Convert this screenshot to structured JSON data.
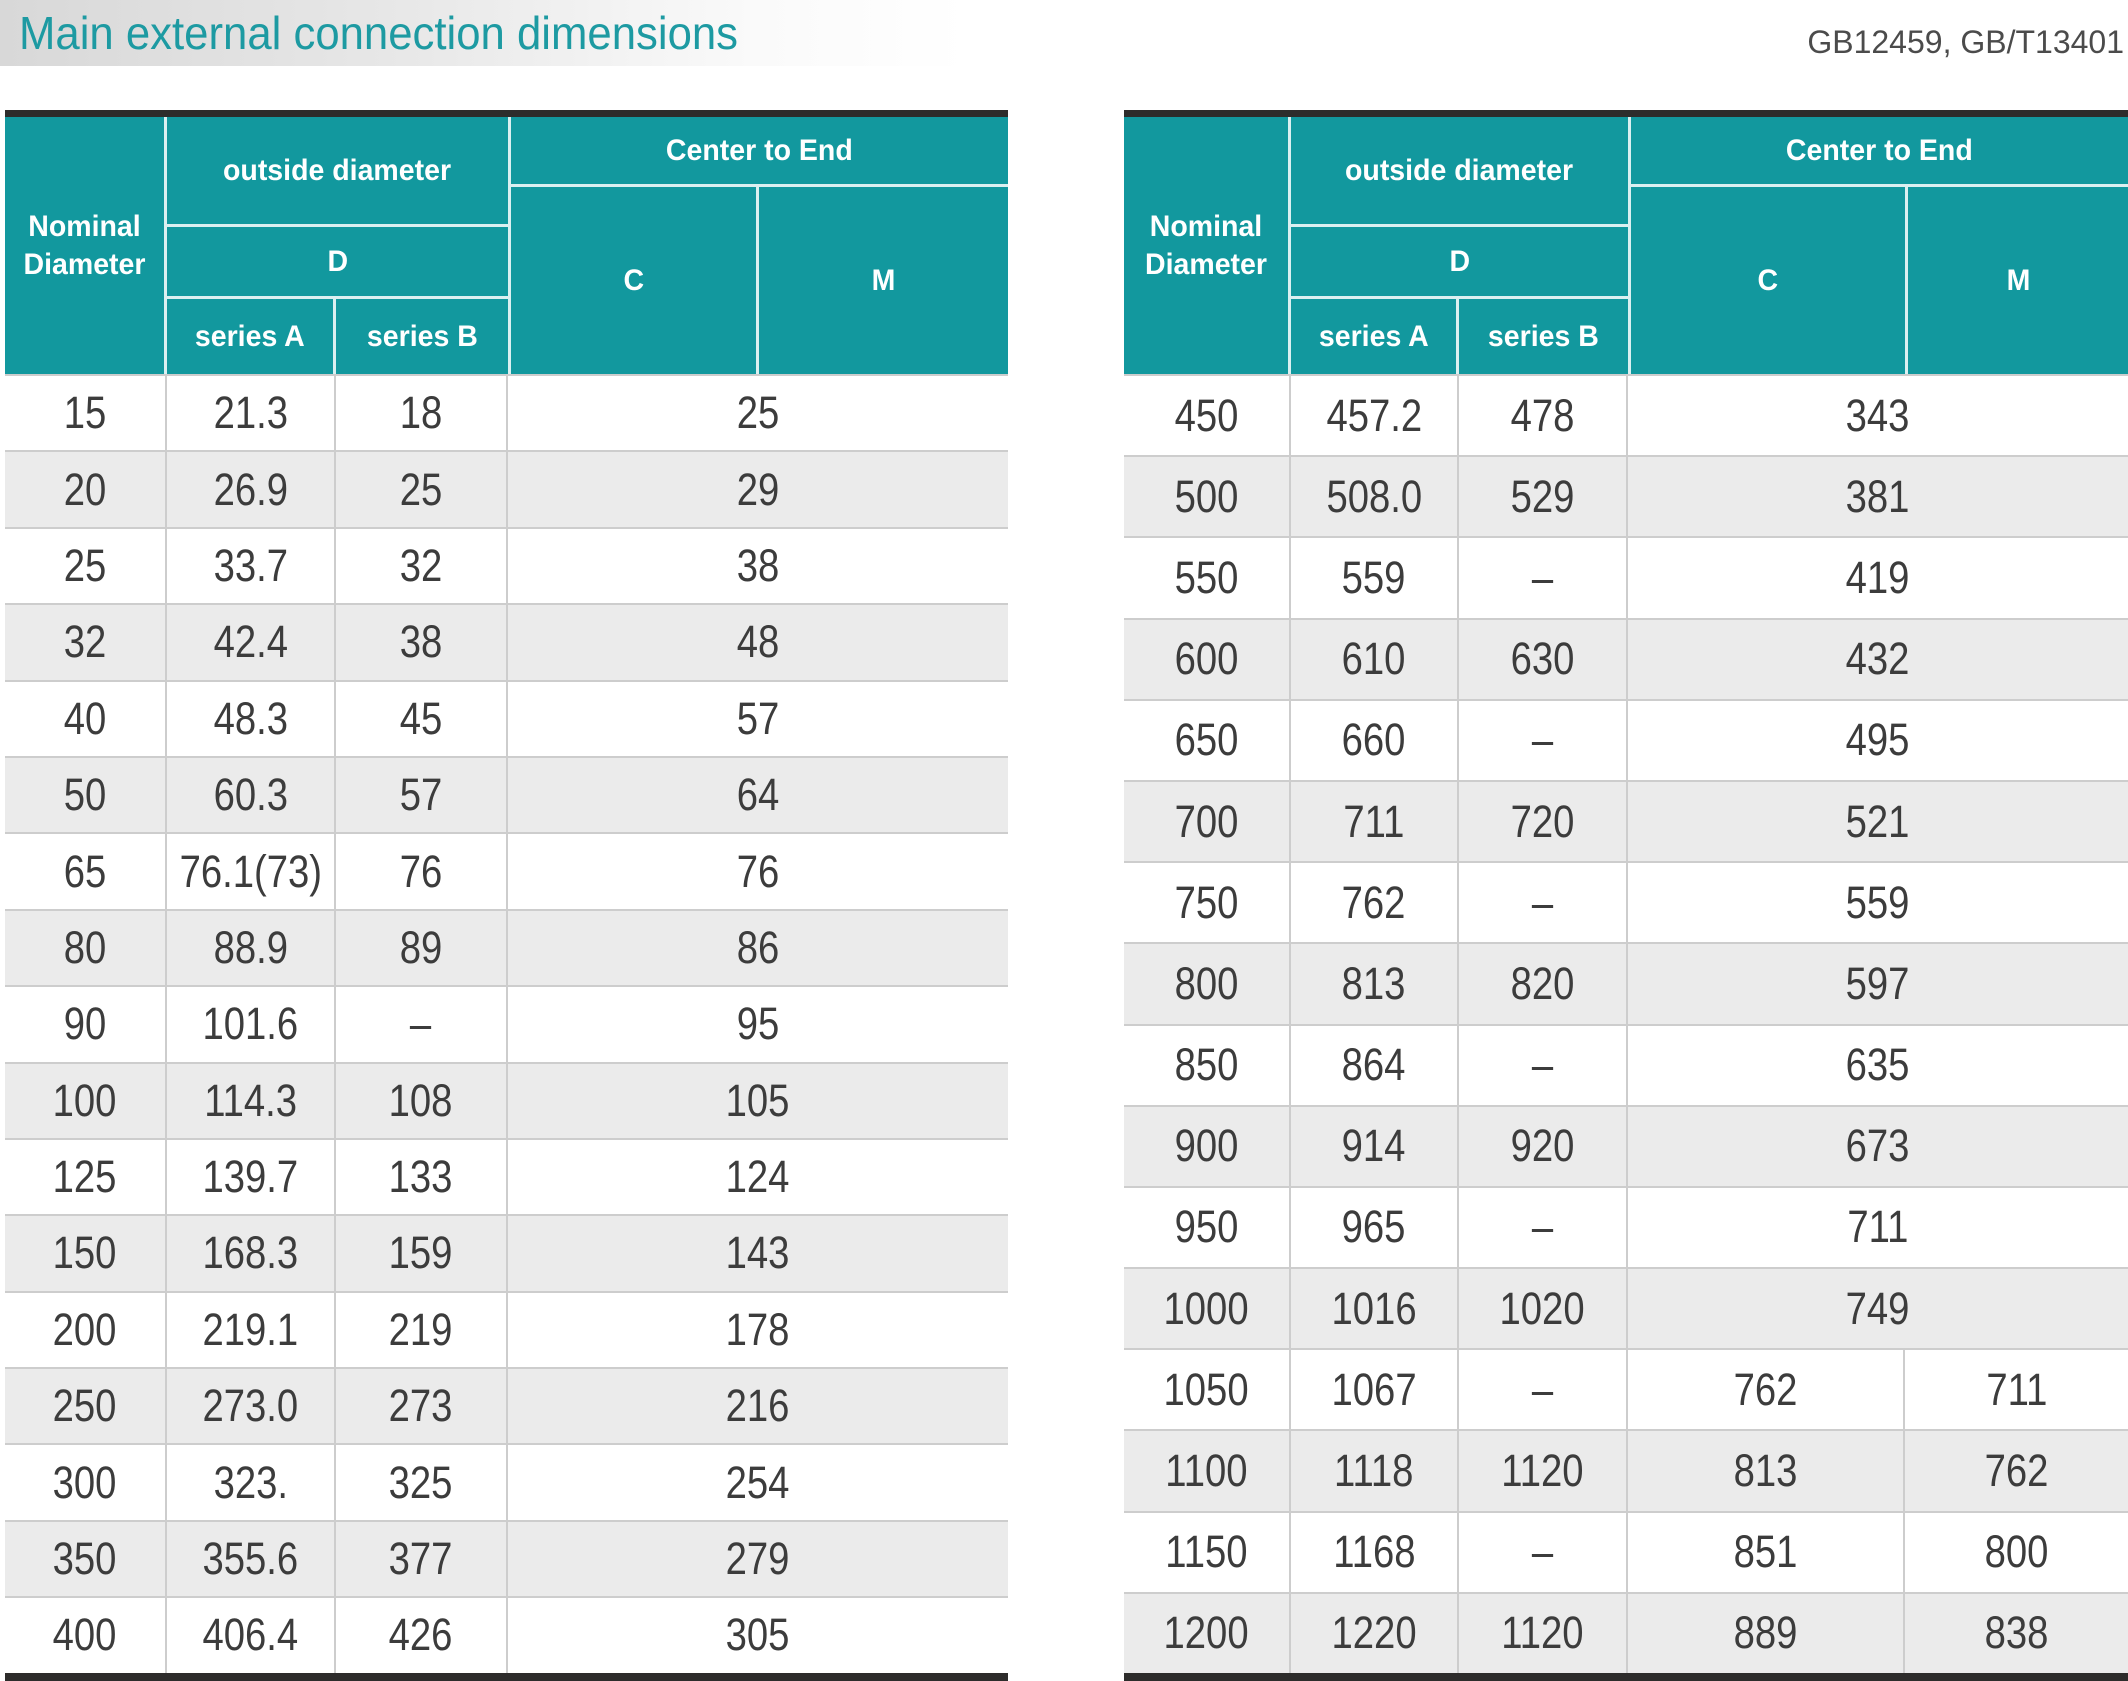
{
  "page": {
    "title": "Main external connection dimensions",
    "standards": "GB12459, GB/T13401"
  },
  "colors": {
    "accent_teal": "#12989E",
    "header_text": "#FFFFFF",
    "row_stripe": "#EBEBEB",
    "body_text": "#3C3C3C",
    "grid_line": "#CDCDCD",
    "table_frame": "#2D2C2B",
    "title_text": "#1D9AA2",
    "standards_text": "#4B4B4B",
    "titlebar_gradient_start": "#D8D8D8"
  },
  "table_header": {
    "nominal_diameter": "Nominal Diameter",
    "outside_diameter": "outside diameter",
    "d": "D",
    "series_a": "series A",
    "series_b": "series B",
    "center_to_end": "Center to End",
    "c": "C",
    "m": "M"
  },
  "left_table": {
    "rows": [
      {
        "dn": "15",
        "series_a": "21.3",
        "series_b": "18",
        "cm": "25"
      },
      {
        "dn": "20",
        "series_a": "26.9",
        "series_b": "25",
        "cm": "29"
      },
      {
        "dn": "25",
        "series_a": "33.7",
        "series_b": "32",
        "cm": "38"
      },
      {
        "dn": "32",
        "series_a": "42.4",
        "series_b": "38",
        "cm": "48"
      },
      {
        "dn": "40",
        "series_a": "48.3",
        "series_b": "45",
        "cm": "57"
      },
      {
        "dn": "50",
        "series_a": "60.3",
        "series_b": "57",
        "cm": "64"
      },
      {
        "dn": "65",
        "series_a": "76.1(73)",
        "series_b": "76",
        "cm": "76"
      },
      {
        "dn": "80",
        "series_a": "88.9",
        "series_b": "89",
        "cm": "86"
      },
      {
        "dn": "90",
        "series_a": "101.6",
        "series_b": "–",
        "cm": "95"
      },
      {
        "dn": "100",
        "series_a": "114.3",
        "series_b": "108",
        "cm": "105"
      },
      {
        "dn": "125",
        "series_a": "139.7",
        "series_b": "133",
        "cm": "124"
      },
      {
        "dn": "150",
        "series_a": "168.3",
        "series_b": "159",
        "cm": "143"
      },
      {
        "dn": "200",
        "series_a": "219.1",
        "series_b": "219",
        "cm": "178"
      },
      {
        "dn": "250",
        "series_a": "273.0",
        "series_b": "273",
        "cm": "216"
      },
      {
        "dn": "300",
        "series_a": "323.",
        "series_b": "325",
        "cm": "254"
      },
      {
        "dn": "350",
        "series_a": "355.6",
        "series_b": "377",
        "cm": "279"
      },
      {
        "dn": "400",
        "series_a": "406.4",
        "series_b": "426",
        "cm": "305"
      }
    ]
  },
  "right_table": {
    "rows": [
      {
        "dn": "450",
        "series_a": "457.2",
        "series_b": "478",
        "cm": "343"
      },
      {
        "dn": "500",
        "series_a": "508.0",
        "series_b": "529",
        "cm": "381"
      },
      {
        "dn": "550",
        "series_a": "559",
        "series_b": "–",
        "cm": "419"
      },
      {
        "dn": "600",
        "series_a": "610",
        "series_b": "630",
        "cm": "432"
      },
      {
        "dn": "650",
        "series_a": "660",
        "series_b": "–",
        "cm": "495"
      },
      {
        "dn": "700",
        "series_a": "711",
        "series_b": "720",
        "cm": "521"
      },
      {
        "dn": "750",
        "series_a": "762",
        "series_b": "–",
        "cm": "559"
      },
      {
        "dn": "800",
        "series_a": "813",
        "series_b": "820",
        "cm": "597"
      },
      {
        "dn": "850",
        "series_a": "864",
        "series_b": "–",
        "cm": "635"
      },
      {
        "dn": "900",
        "series_a": "914",
        "series_b": "920",
        "cm": "673"
      },
      {
        "dn": "950",
        "series_a": "965",
        "series_b": "–",
        "cm": "711"
      },
      {
        "dn": "1000",
        "series_a": "1016",
        "series_b": "1020",
        "cm": "749"
      },
      {
        "dn": "1050",
        "series_a": "1067",
        "series_b": "–",
        "c": "762",
        "m": "711"
      },
      {
        "dn": "1100",
        "series_a": "1118",
        "series_b": "1120",
        "c": "813",
        "m": "762"
      },
      {
        "dn": "1150",
        "series_a": "1168",
        "series_b": "–",
        "c": "851",
        "m": "800"
      },
      {
        "dn": "1200",
        "series_a": "1220",
        "series_b": "1120",
        "c": "889",
        "m": "838"
      }
    ]
  }
}
